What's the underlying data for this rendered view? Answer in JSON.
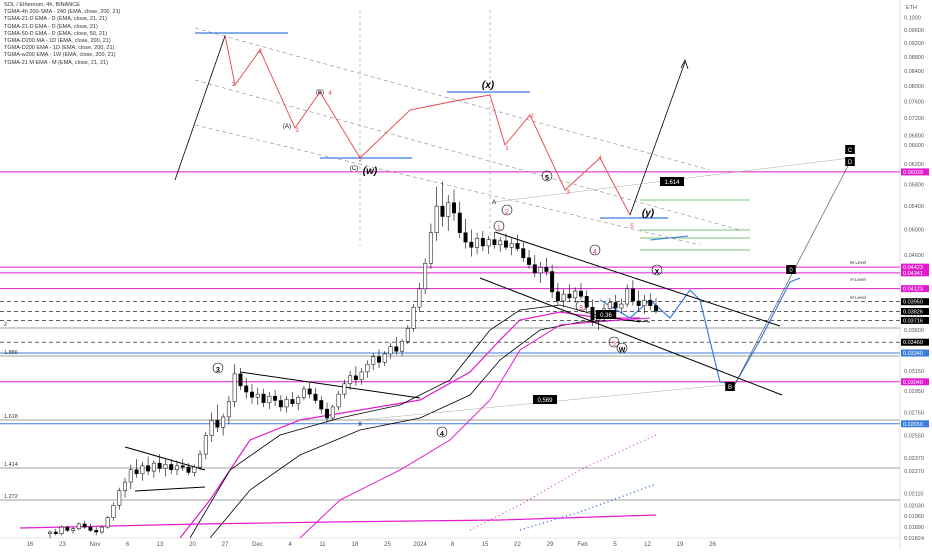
{
  "legend": {
    "title": "SOL / Ethereum, 4h, BINANCE",
    "lines": [
      "TGMA-4h 200-SMA - 240 (EMA, close, 200, 21)",
      "TGMA-21-D EMA - D (EMA, close, 21, 21)",
      "TGMA-21-D EMA - D (EMA, close, 21)",
      "TGMA-50-D EMA - D (EMA, close, 50, 21)",
      "TGMA-D200 MA - 1D (EMA, close, 200, 21)",
      "TGMA-D200 EMA - 1D (EMA, close, 200, 21)",
      "TGMA-w200 EMA - 1W (EMA, close, 200, 21)",
      "TGMA-21 M EMA - M (EMA, close, 21, 21)"
    ]
  },
  "colors": {
    "candle_up": "#ffffff",
    "candle_down": "#000000",
    "wave_red": "#e8424a",
    "blue_line": "#3b7ddd",
    "magenta": "#e21bd0",
    "pink_line": "#f06292",
    "green_fib": "#4caf50",
    "label_bg": "#000000",
    "label_fg": "#ffffff"
  },
  "chart_data": {
    "type": "candlestick",
    "symbol": "SOL / Ethereum",
    "timeframe": "4h",
    "exchange": "BINANCE",
    "currency": "ETH",
    "y_scale": "log",
    "ylim": [
      0.01824,
      0.1039
    ],
    "y_ticks": [
      "0.1000",
      "0.09600",
      "0.09200",
      "0.08800",
      "0.08400",
      "0.08000",
      "0.07600",
      "0.07200",
      "0.06800",
      "0.06600",
      "0.06200",
      "0.05800",
      "0.05400",
      "0.05000",
      "0.04600",
      "0.04423",
      "0.03950",
      "0.03800",
      "0.03600",
      "0.03340",
      "0.03150",
      "0.02950",
      "0.02750",
      "0.02550",
      "0.02370",
      "0.02270",
      "0.02110",
      "0.02030",
      "0.01960",
      "0.01890",
      "0.01824"
    ],
    "x_ticks": [
      "16",
      "23",
      "Nov",
      "6",
      "13",
      "20",
      "27",
      "Dec",
      "4",
      "11",
      "18",
      "25",
      "2024",
      "8",
      "15",
      "22",
      "29",
      "Feb",
      "5",
      "12",
      "19",
      "26"
    ],
    "price_levels": [
      {
        "label": "0.06039",
        "price": 0.06039,
        "color": "#e21bd0"
      },
      {
        "label": "0.04423",
        "price": 0.04423,
        "color": "#e21bd0"
      },
      {
        "label": "0.04341",
        "price": 0.04341,
        "color": "#e21bd0"
      },
      {
        "label": "0.04123",
        "price": 0.04123,
        "color": "#e21bd0"
      },
      {
        "label": "0.03950",
        "price": 0.0395,
        "color": "#000000"
      },
      {
        "label": "0.03826",
        "price": 0.03826,
        "color": "#000000"
      },
      {
        "label": "0.03716",
        "price": 0.03716,
        "color": "#000000"
      },
      {
        "label": "0.03460",
        "price": 0.0346,
        "color": "#000000"
      },
      {
        "label": "0.03340",
        "price": 0.0334,
        "color": "#3b7ddd"
      },
      {
        "label": "0.03040",
        "price": 0.0304,
        "color": "#e21bd0"
      },
      {
        "label": "0.02650",
        "price": 0.0265,
        "color": "#3b7ddd"
      }
    ],
    "fib_labels": [
      "2",
      "1.886",
      "1.618",
      "1.414",
      "1.272"
    ],
    "boxed_labels": [
      "1.614",
      "0.36",
      "0.569",
      "C",
      "D",
      "0",
      "B"
    ],
    "annotations": [
      "(x)",
      "(w)",
      "(y)",
      "(C)",
      "(B)",
      "(A)",
      "A",
      "B",
      "C",
      "D",
      "X",
      "W",
      "1",
      "2",
      "3",
      "4",
      "5",
      "W Level",
      "H Level",
      "M Level"
    ],
    "candles": [
      [
        0.0185,
        0.0187,
        0.0182,
        0.0186
      ],
      [
        0.0186,
        0.0188,
        0.0184,
        0.0185
      ],
      [
        0.0185,
        0.019,
        0.0184,
        0.0189
      ],
      [
        0.0189,
        0.019,
        0.0186,
        0.0187
      ],
      [
        0.0187,
        0.0189,
        0.0185,
        0.0188
      ],
      [
        0.0188,
        0.0192,
        0.0187,
        0.0191
      ],
      [
        0.0191,
        0.0193,
        0.0188,
        0.0189
      ],
      [
        0.0189,
        0.0191,
        0.0186,
        0.0187
      ],
      [
        0.0187,
        0.0189,
        0.0184,
        0.0186
      ],
      [
        0.0186,
        0.019,
        0.0185,
        0.0189
      ],
      [
        0.0189,
        0.0196,
        0.0188,
        0.0195
      ],
      [
        0.0195,
        0.0205,
        0.0193,
        0.0203
      ],
      [
        0.0203,
        0.0215,
        0.02,
        0.0213
      ],
      [
        0.0213,
        0.0222,
        0.0208,
        0.0219
      ],
      [
        0.0219,
        0.0232,
        0.0214,
        0.0228
      ],
      [
        0.0228,
        0.0236,
        0.0222,
        0.0225
      ],
      [
        0.0225,
        0.0234,
        0.022,
        0.0231
      ],
      [
        0.0231,
        0.0238,
        0.0224,
        0.0227
      ],
      [
        0.0227,
        0.0235,
        0.0222,
        0.0233
      ],
      [
        0.0233,
        0.024,
        0.0226,
        0.0229
      ],
      [
        0.0229,
        0.0236,
        0.0223,
        0.0232
      ],
      [
        0.0232,
        0.0236,
        0.0225,
        0.0228
      ],
      [
        0.0228,
        0.0235,
        0.0224,
        0.0231
      ],
      [
        0.0231,
        0.0236,
        0.0227,
        0.023
      ],
      [
        0.023,
        0.0233,
        0.0224,
        0.0226
      ],
      [
        0.0226,
        0.0232,
        0.0223,
        0.023
      ],
      [
        0.023,
        0.0243,
        0.0228,
        0.024
      ],
      [
        0.024,
        0.0258,
        0.0236,
        0.0255
      ],
      [
        0.0255,
        0.0275,
        0.025,
        0.0268
      ],
      [
        0.0268,
        0.0282,
        0.0258,
        0.0262
      ],
      [
        0.0262,
        0.0274,
        0.0255,
        0.0271
      ],
      [
        0.0271,
        0.029,
        0.0265,
        0.0285
      ],
      [
        0.0285,
        0.0322,
        0.028,
        0.0312
      ],
      [
        0.0312,
        0.0318,
        0.0296,
        0.03
      ],
      [
        0.03,
        0.0308,
        0.0288,
        0.0294
      ],
      [
        0.0294,
        0.0302,
        0.0283,
        0.0289
      ],
      [
        0.0289,
        0.0298,
        0.0282,
        0.0292
      ],
      [
        0.0292,
        0.0297,
        0.028,
        0.0284
      ],
      [
        0.0284,
        0.0294,
        0.0278,
        0.029
      ],
      [
        0.029,
        0.0296,
        0.0281,
        0.0286
      ],
      [
        0.0286,
        0.0291,
        0.0276,
        0.028
      ],
      [
        0.028,
        0.029,
        0.0275,
        0.0287
      ],
      [
        0.0287,
        0.0294,
        0.028,
        0.0283
      ],
      [
        0.0283,
        0.0291,
        0.0277,
        0.0289
      ],
      [
        0.0289,
        0.03,
        0.0286,
        0.0297
      ],
      [
        0.0297,
        0.0303,
        0.0288,
        0.0292
      ],
      [
        0.0292,
        0.0298,
        0.0283,
        0.0286
      ],
      [
        0.0286,
        0.029,
        0.0274,
        0.0278
      ],
      [
        0.0278,
        0.0284,
        0.0266,
        0.027
      ],
      [
        0.027,
        0.0282,
        0.0268,
        0.028
      ],
      [
        0.028,
        0.0295,
        0.0277,
        0.0292
      ],
      [
        0.0292,
        0.0306,
        0.0288,
        0.0302
      ],
      [
        0.0302,
        0.0315,
        0.0296,
        0.031
      ],
      [
        0.031,
        0.032,
        0.03,
        0.0306
      ],
      [
        0.0306,
        0.0318,
        0.0301,
        0.0314
      ],
      [
        0.0314,
        0.0326,
        0.0308,
        0.0322
      ],
      [
        0.0322,
        0.0334,
        0.0316,
        0.033
      ],
      [
        0.033,
        0.0338,
        0.0318,
        0.0324
      ],
      [
        0.0324,
        0.0336,
        0.032,
        0.0333
      ],
      [
        0.0333,
        0.0345,
        0.0328,
        0.0341
      ],
      [
        0.0341,
        0.0352,
        0.0332,
        0.0336
      ],
      [
        0.0336,
        0.035,
        0.0331,
        0.0347
      ],
      [
        0.0347,
        0.0366,
        0.0344,
        0.0362
      ],
      [
        0.0362,
        0.0392,
        0.0358,
        0.0388
      ],
      [
        0.0388,
        0.042,
        0.0382,
        0.0412
      ],
      [
        0.0412,
        0.0455,
        0.0405,
        0.0448
      ],
      [
        0.0448,
        0.051,
        0.044,
        0.0495
      ],
      [
        0.0495,
        0.0575,
        0.0482,
        0.054
      ],
      [
        0.054,
        0.0585,
        0.0505,
        0.0522
      ],
      [
        0.0522,
        0.056,
        0.0498,
        0.0546
      ],
      [
        0.0546,
        0.057,
        0.0515,
        0.0528
      ],
      [
        0.0528,
        0.0548,
        0.0486,
        0.0495
      ],
      [
        0.0495,
        0.0518,
        0.047,
        0.048
      ],
      [
        0.048,
        0.05,
        0.0458,
        0.0472
      ],
      [
        0.0472,
        0.0495,
        0.0462,
        0.0486
      ],
      [
        0.0486,
        0.0498,
        0.0466,
        0.0474
      ],
      [
        0.0474,
        0.049,
        0.0462,
        0.0484
      ],
      [
        0.0484,
        0.0496,
        0.047,
        0.0476
      ],
      [
        0.0476,
        0.0488,
        0.0465,
        0.0482
      ],
      [
        0.0482,
        0.0494,
        0.0468,
        0.0472
      ],
      [
        0.0472,
        0.0486,
        0.046,
        0.0478
      ],
      [
        0.0478,
        0.0492,
        0.0466,
        0.047
      ],
      [
        0.047,
        0.048,
        0.045,
        0.0456
      ],
      [
        0.0456,
        0.0468,
        0.044,
        0.0446
      ],
      [
        0.0446,
        0.046,
        0.0428,
        0.0434
      ],
      [
        0.0434,
        0.045,
        0.042,
        0.0442
      ],
      [
        0.0442,
        0.0456,
        0.043,
        0.0436
      ],
      [
        0.0436,
        0.0446,
        0.04,
        0.0408
      ],
      [
        0.0408,
        0.042,
        0.039,
        0.0396
      ],
      [
        0.0396,
        0.0412,
        0.0388,
        0.0405
      ],
      [
        0.0405,
        0.0418,
        0.0396,
        0.04
      ],
      [
        0.04,
        0.0414,
        0.0394,
        0.0409
      ],
      [
        0.0409,
        0.042,
        0.0398,
        0.0402
      ],
      [
        0.0402,
        0.041,
        0.038,
        0.0388
      ],
      [
        0.0388,
        0.0398,
        0.0365,
        0.0372
      ],
      [
        0.0372,
        0.0384,
        0.036,
        0.0378
      ],
      [
        0.0378,
        0.0392,
        0.037,
        0.0386
      ],
      [
        0.0386,
        0.04,
        0.0378,
        0.0394
      ],
      [
        0.0394,
        0.0404,
        0.0382,
        0.0387
      ],
      [
        0.0387,
        0.0399,
        0.038,
        0.0392
      ],
      [
        0.0392,
        0.0418,
        0.0388,
        0.0412
      ],
      [
        0.0412,
        0.0424,
        0.039,
        0.0396
      ],
      [
        0.0396,
        0.041,
        0.0382,
        0.039
      ],
      [
        0.039,
        0.0404,
        0.038,
        0.0397
      ],
      [
        0.0397,
        0.0406,
        0.0384,
        0.039
      ],
      [
        0.039,
        0.04,
        0.038,
        0.0383
      ]
    ],
    "wxy_path": [
      [
        0.095,
        "p1"
      ],
      [
        0.08,
        "p2"
      ],
      [
        0.088,
        "p3"
      ],
      [
        0.07,
        "p4"
      ],
      [
        0.0765,
        "p5"
      ],
      [
        0.062,
        "p6"
      ],
      [
        0.07,
        "p7"
      ],
      [
        0.076,
        "p8"
      ],
      [
        0.065,
        "p9"
      ],
      [
        0.06,
        "p10"
      ],
      [
        0.063,
        "p11"
      ],
      [
        0.056,
        "p12"
      ]
    ]
  }
}
